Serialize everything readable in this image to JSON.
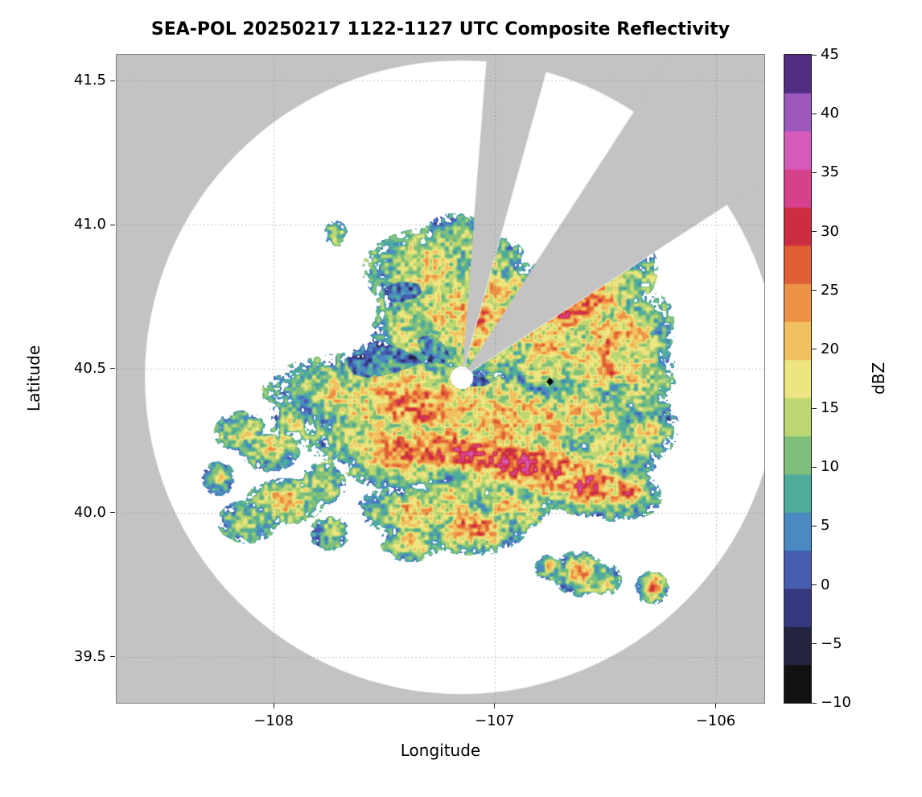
{
  "title": "SEA-POL 20250217 1122-1127 UTC Composite Reflectivity",
  "axes": {
    "xlabel": "Longitude",
    "ylabel": "Latitude",
    "x_tick_values": [
      -108,
      -107,
      -106
    ],
    "x_tick_labels": [
      "−108",
      "−107",
      "−106"
    ],
    "y_tick_values": [
      41.5,
      41.0,
      40.5,
      40.0,
      39.5
    ],
    "y_tick_labels": [
      "41.5",
      "41.0",
      "40.5",
      "40.0",
      "39.5"
    ]
  },
  "colorbar": {
    "label": "dBZ",
    "min": -10,
    "max": 45,
    "n_segments": 17,
    "tick_values": [
      45,
      40,
      35,
      30,
      25,
      20,
      15,
      10,
      5,
      0,
      -5,
      -10
    ],
    "tick_labels": [
      "45",
      "40",
      "35",
      "30",
      "25",
      "20",
      "15",
      "10",
      "5",
      "0",
      "−5",
      "−10"
    ],
    "stops": [
      [
        -10,
        "#070707"
      ],
      [
        -7,
        "#191920"
      ],
      [
        -4,
        "#2b2b52"
      ],
      [
        -1,
        "#3c3f94"
      ],
      [
        2,
        "#4767b8"
      ],
      [
        5,
        "#4b8fc3"
      ],
      [
        7,
        "#46a8a4"
      ],
      [
        9,
        "#5cb38d"
      ],
      [
        11,
        "#7fbf7b"
      ],
      [
        13,
        "#a3cd72"
      ],
      [
        15,
        "#cadd70"
      ],
      [
        17,
        "#e9e886"
      ],
      [
        19,
        "#f3da72"
      ],
      [
        21,
        "#f2bd5c"
      ],
      [
        23,
        "#efa04d"
      ],
      [
        25,
        "#ea8440"
      ],
      [
        27,
        "#e16336"
      ],
      [
        29,
        "#d4402d"
      ],
      [
        31,
        "#c9264a"
      ],
      [
        33,
        "#d23a7e"
      ],
      [
        35,
        "#dc4fa3"
      ],
      [
        37,
        "#d55cbb"
      ],
      [
        39,
        "#b35ec6"
      ],
      [
        41,
        "#8b51b5"
      ],
      [
        43,
        "#5c3390"
      ],
      [
        45,
        "#2a1545"
      ]
    ]
  },
  "chart_data": {
    "type": "heatmap",
    "description": "Radar PPI composite reflectivity on a longitude/latitude map. White circle = radar coverage on gray out-of-range background; two gray wedges = blocked azimuth sectors radiating from the radar; colored speckled echoes in dBZ; small white hole at radar location; black diamond site marker east of radar.",
    "title": "SEA-POL 20250217 1122-1127 UTC Composite Reflectivity",
    "xlabel": "Longitude",
    "ylabel": "Latitude",
    "xlim": [
      -108.71,
      -105.78
    ],
    "ylim": [
      39.34,
      41.59
    ],
    "x_ticks": [
      -108,
      -107,
      -106
    ],
    "y_ticks": [
      39.5,
      40.0,
      40.5,
      41.0,
      41.5
    ],
    "grid": "dotted",
    "background_outside_range": "#c3c3c3",
    "value_units": "dBZ",
    "value_range": [
      -10,
      45
    ],
    "radar": {
      "center_lon": -107.15,
      "center_lat": 40.47,
      "range_deg_lat": 1.1,
      "blocked_azimuth_sectors_deg": [
        [
          4.5,
          15.5
        ],
        [
          33,
          57
        ]
      ],
      "center_hole_radius_px": 13
    },
    "site_marker": {
      "lon": -106.75,
      "lat": 40.455,
      "shape": "diamond",
      "color": "#000000"
    },
    "echo_cell_fields": [
      "lon",
      "lat",
      "sigma_lon_deg",
      "sigma_lat_deg",
      "tilt_deg",
      "peak_dbz"
    ],
    "echo_cells": [
      [
        -107.25,
        40.83,
        0.22,
        0.1,
        -5,
        18
      ],
      [
        -107.05,
        40.68,
        0.28,
        0.13,
        -10,
        24
      ],
      [
        -107.35,
        40.62,
        0.14,
        0.09,
        0,
        16
      ],
      [
        -107.18,
        40.95,
        0.1,
        0.06,
        0,
        15
      ],
      [
        -106.98,
        40.88,
        0.08,
        0.05,
        0,
        14
      ],
      [
        -107.38,
        40.78,
        0.1,
        0.045,
        10,
        5
      ],
      [
        -107.72,
        40.97,
        0.035,
        0.03,
        0,
        15
      ],
      [
        -107.52,
        40.5,
        0.2,
        0.07,
        25,
        4
      ],
      [
        -107.32,
        40.6,
        0.16,
        0.06,
        -20,
        5
      ],
      [
        -107.18,
        40.44,
        0.22,
        0.05,
        -5,
        3
      ],
      [
        -107.35,
        40.38,
        0.4,
        0.1,
        -5,
        24
      ],
      [
        -106.95,
        40.33,
        0.3,
        0.1,
        -8,
        22
      ],
      [
        -107.55,
        40.3,
        0.12,
        0.07,
        0,
        16
      ],
      [
        -106.62,
        40.35,
        0.18,
        0.1,
        -10,
        18
      ],
      [
        -107.82,
        40.47,
        0.05,
        0.035,
        0,
        12
      ],
      [
        -107.25,
        40.22,
        0.35,
        0.07,
        -6,
        28
      ],
      [
        -106.85,
        40.16,
        0.3,
        0.07,
        -10,
        31
      ],
      [
        -106.6,
        40.1,
        0.18,
        0.06,
        -15,
        30
      ],
      [
        -107.45,
        40.18,
        0.15,
        0.06,
        0,
        20
      ],
      [
        -106.45,
        40.22,
        0.12,
        0.07,
        -10,
        20
      ],
      [
        -106.42,
        40.08,
        0.1,
        0.05,
        -20,
        26
      ],
      [
        -106.62,
        40.73,
        0.22,
        0.09,
        35,
        28
      ],
      [
        -106.48,
        40.6,
        0.18,
        0.08,
        30,
        24
      ],
      [
        -106.75,
        40.56,
        0.18,
        0.09,
        20,
        19
      ],
      [
        -106.38,
        40.48,
        0.13,
        0.09,
        10,
        17
      ],
      [
        -106.55,
        40.85,
        0.1,
        0.05,
        30,
        15
      ],
      [
        -106.52,
        40.5,
        0.14,
        0.08,
        20,
        21
      ],
      [
        -106.35,
        40.62,
        0.1,
        0.07,
        25,
        19
      ],
      [
        -106.32,
        40.3,
        0.1,
        0.08,
        0,
        16
      ],
      [
        -108.15,
        40.28,
        0.08,
        0.05,
        0,
        15
      ],
      [
        -108.02,
        40.22,
        0.09,
        0.05,
        0,
        17
      ],
      [
        -107.92,
        40.33,
        0.06,
        0.04,
        0,
        14
      ],
      [
        -108.12,
        39.97,
        0.09,
        0.05,
        0,
        16
      ],
      [
        -107.95,
        40.04,
        0.11,
        0.05,
        0,
        19
      ],
      [
        -107.78,
        40.1,
        0.07,
        0.05,
        0,
        15
      ],
      [
        -107.75,
        39.93,
        0.06,
        0.04,
        0,
        14
      ],
      [
        -108.25,
        40.12,
        0.05,
        0.04,
        0,
        13
      ],
      [
        -107.32,
        40.0,
        0.18,
        0.055,
        -5,
        22
      ],
      [
        -107.1,
        39.95,
        0.14,
        0.055,
        0,
        24
      ],
      [
        -106.93,
        40.02,
        0.11,
        0.05,
        0,
        20
      ],
      [
        -107.38,
        39.9,
        0.09,
        0.045,
        0,
        17
      ],
      [
        -107.18,
        40.07,
        0.1,
        0.04,
        0,
        18
      ],
      [
        -106.62,
        39.79,
        0.065,
        0.045,
        0,
        26
      ],
      [
        -106.5,
        39.77,
        0.045,
        0.035,
        0,
        19
      ],
      [
        -106.29,
        39.74,
        0.045,
        0.035,
        0,
        22
      ],
      [
        -106.76,
        39.81,
        0.04,
        0.03,
        0,
        15
      ]
    ]
  }
}
